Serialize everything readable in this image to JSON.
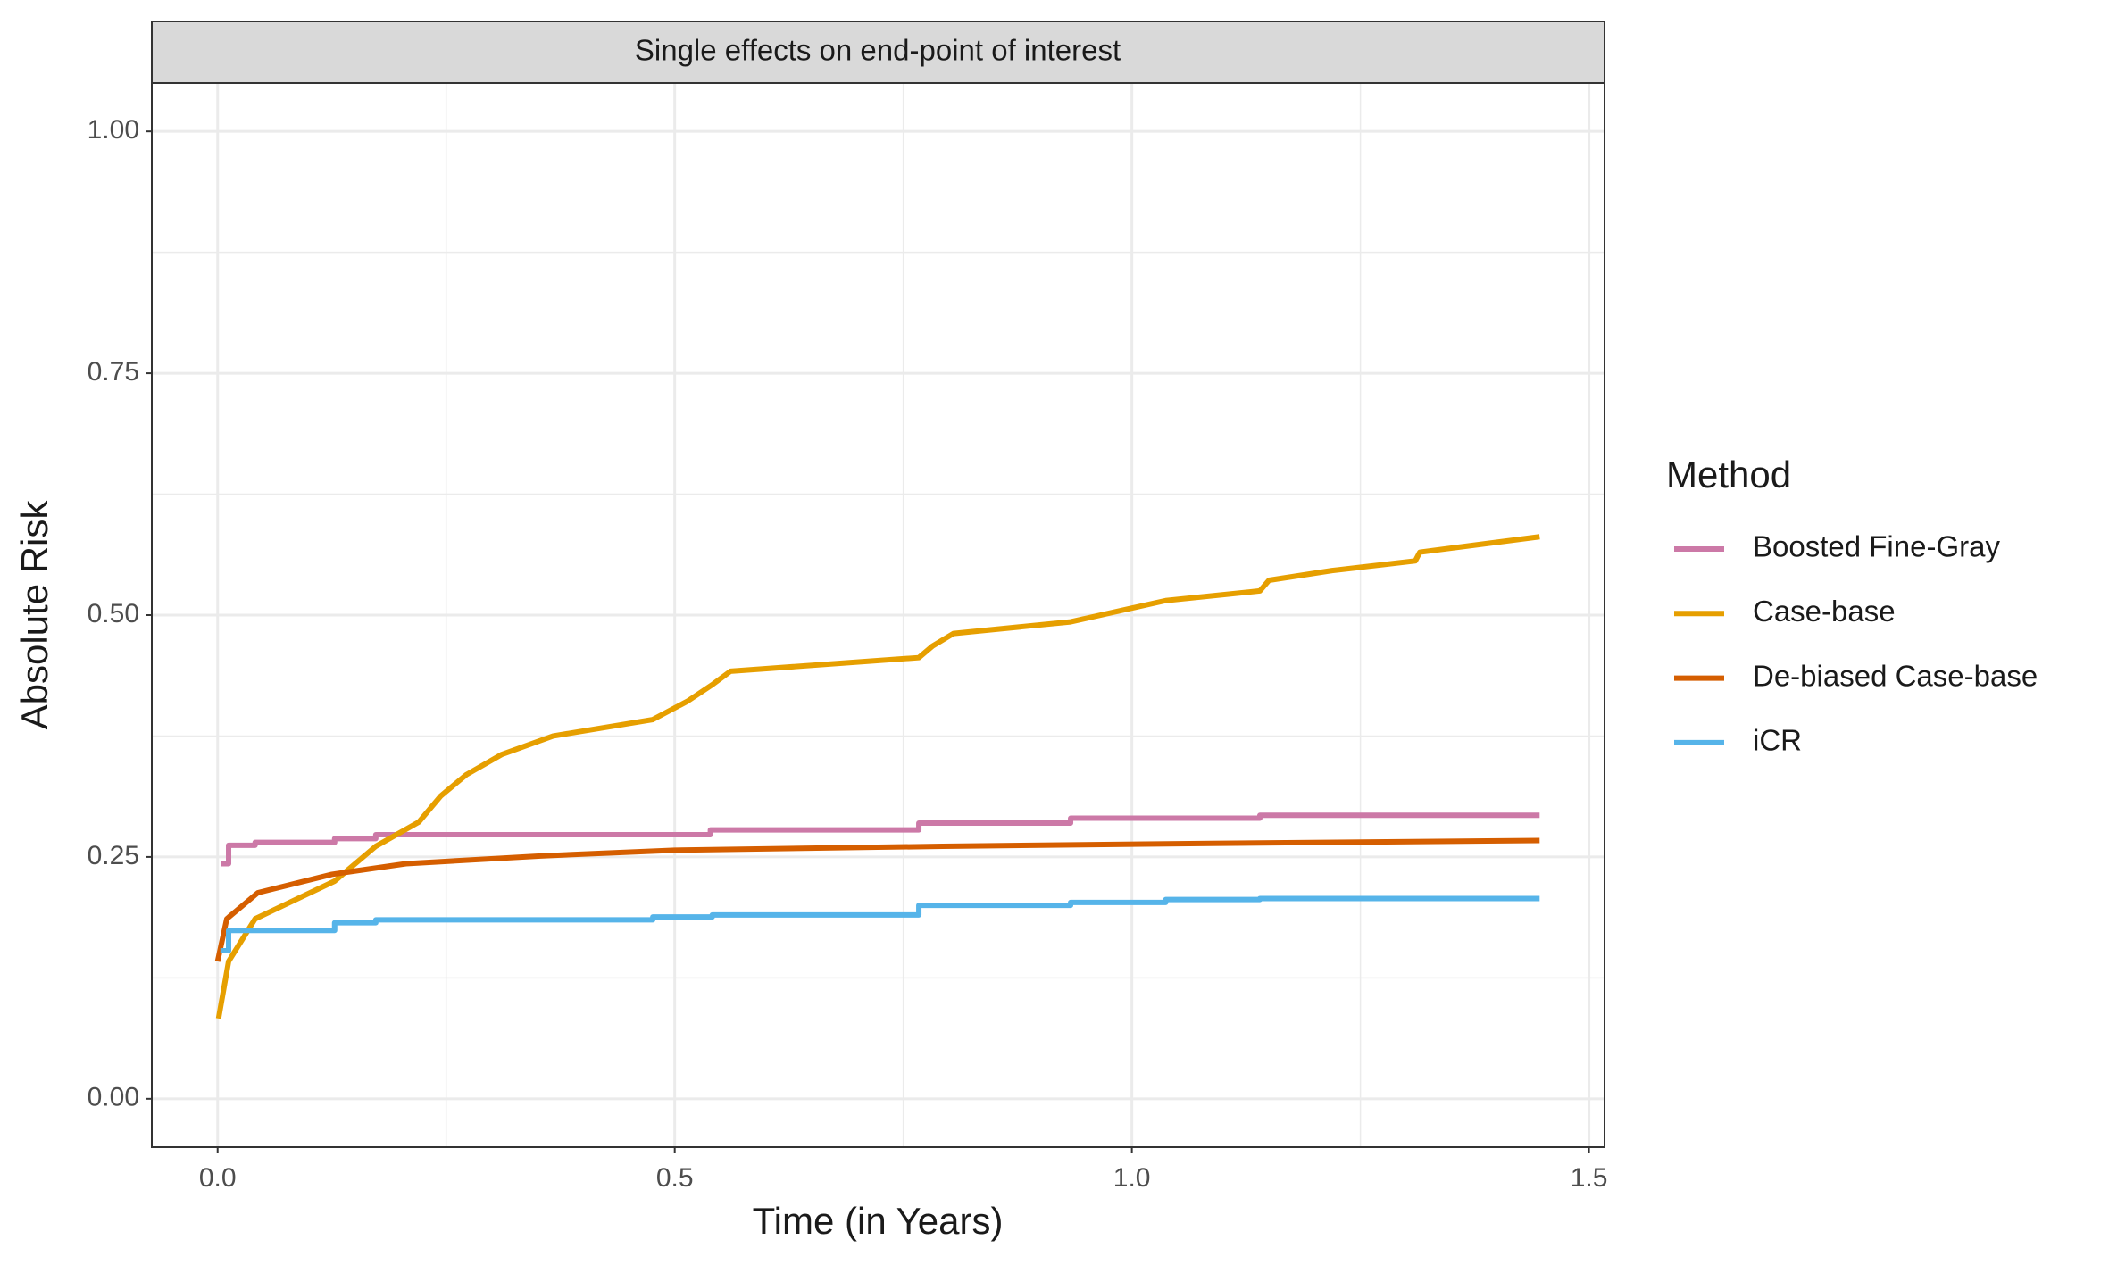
{
  "chart_data": {
    "type": "line",
    "title": "Single effects on end-point of interest",
    "x_label": "Time (in Years)",
    "y_label": "Absolute Risk",
    "legend_title": "Method",
    "xlim": [
      -0.072,
      1.517
    ],
    "ylim": [
      -0.05,
      1.05
    ],
    "xticks": [
      {
        "value": 0,
        "label": "0.0"
      },
      0.5,
      {
        "value": 1,
        "label": "1.0"
      },
      1.5
    ],
    "yticks": [
      {
        "value": 0,
        "label": "0.00"
      },
      {
        "value": 0.25,
        "label": "0.25"
      },
      {
        "value": 0.5,
        "label": "0.50"
      },
      {
        "value": 0.75,
        "label": "0.75"
      },
      {
        "value": 1,
        "label": "1.00"
      }
    ],
    "grid": true,
    "minor_grid": true,
    "legend": "right",
    "series": [
      {
        "name": "Boosted Fine-Gray",
        "color": "#CC79A7",
        "x": [
          0.004,
          0.012,
          0.012,
          0.041,
          0.041,
          0.128,
          0.128,
          0.173,
          0.173,
          0.539,
          0.539,
          0.767,
          0.767,
          0.933,
          0.933,
          1.14,
          1.14,
          1.446
        ],
        "values": [
          0.243,
          0.243,
          0.262,
          0.262,
          0.265,
          0.265,
          0.269,
          0.269,
          0.273,
          0.273,
          0.278,
          0.278,
          0.285,
          0.285,
          0.29,
          0.29,
          0.293,
          0.293
        ]
      },
      {
        "name": "Case-base",
        "color": "#E69F00",
        "x": [
          0.001,
          0.012,
          0.041,
          0.128,
          0.173,
          0.22,
          0.244,
          0.272,
          0.311,
          0.367,
          0.476,
          0.514,
          0.541,
          0.561,
          0.767,
          0.782,
          0.805,
          0.933,
          1.037,
          1.14,
          1.15,
          1.219,
          1.31,
          1.315,
          1.446
        ],
        "values": [
          0.083,
          0.142,
          0.186,
          0.225,
          0.261,
          0.286,
          0.313,
          0.335,
          0.356,
          0.375,
          0.392,
          0.411,
          0.428,
          0.442,
          0.456,
          0.468,
          0.481,
          0.493,
          0.515,
          0.525,
          0.536,
          0.546,
          0.556,
          0.565,
          0.581
        ]
      },
      {
        "name": "De-biased Case-base",
        "color": "#D55E00",
        "x": [
          0,
          0.01,
          0.044,
          0.125,
          0.206,
          0.353,
          0.5,
          0.793,
          1.087,
          1.446
        ],
        "values": [
          0.142,
          0.186,
          0.213,
          0.232,
          0.243,
          0.251,
          0.257,
          0.261,
          0.264,
          0.267
        ]
      },
      {
        "name": "iCR",
        "color": "#56B4E9",
        "x": [
          0.003,
          0.012,
          0.012,
          0.128,
          0.128,
          0.173,
          0.173,
          0.476,
          0.476,
          0.541,
          0.541,
          0.767,
          0.767,
          0.933,
          0.933,
          1.037,
          1.037,
          1.14,
          1.14,
          1.446
        ],
        "values": [
          0.153,
          0.153,
          0.174,
          0.174,
          0.182,
          0.182,
          0.185,
          0.185,
          0.188,
          0.188,
          0.19,
          0.19,
          0.2,
          0.2,
          0.203,
          0.203,
          0.206,
          0.206,
          0.207,
          0.207
        ]
      }
    ]
  }
}
